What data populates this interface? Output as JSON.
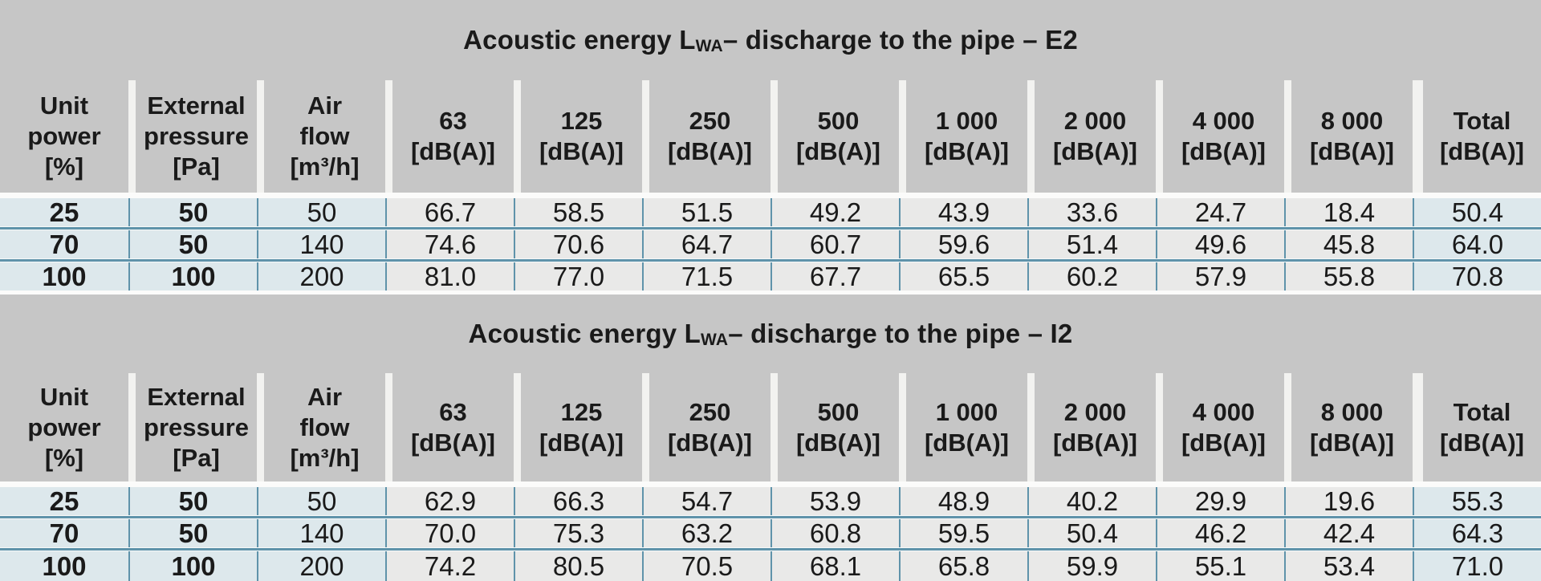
{
  "colors": {
    "band_gray": "#c6c6c6",
    "slit_white": "#f2f2f0",
    "row_blue_bg": "#dde8ec",
    "row_gray_bg": "#e9e9e8",
    "grid_line_blue": "#5f93aa",
    "text": "#1a1a1a"
  },
  "tables": [
    {
      "title": {
        "main": "Acoustic energy L",
        "sub": "WA",
        "rest": " – discharge to the pipe – E2"
      },
      "headers": [
        [
          "Unit",
          "power",
          "[%]"
        ],
        [
          "External",
          "pressure",
          "[Pa]"
        ],
        [
          "Air",
          "flow",
          "[m³/h]"
        ],
        [
          "63",
          "[dB(A)]"
        ],
        [
          "125",
          "[dB(A)]"
        ],
        [
          "250",
          "[dB(A)]"
        ],
        [
          "500",
          "[dB(A)]"
        ],
        [
          "1 000",
          "[dB(A)]"
        ],
        [
          "2 000",
          "[dB(A)]"
        ],
        [
          "4 000",
          "[dB(A)]"
        ],
        [
          "8 000",
          "[dB(A)]"
        ],
        [
          "Total",
          "[dB(A)]"
        ]
      ],
      "rows": [
        [
          "25",
          "50",
          "50",
          "66.7",
          "58.5",
          "51.5",
          "49.2",
          "43.9",
          "33.6",
          "24.7",
          "18.4",
          "50.4"
        ],
        [
          "70",
          "50",
          "140",
          "74.6",
          "70.6",
          "64.7",
          "60.7",
          "59.6",
          "51.4",
          "49.6",
          "45.8",
          "64.0"
        ],
        [
          "100",
          "100",
          "200",
          "81.0",
          "77.0",
          "71.5",
          "67.7",
          "65.5",
          "60.2",
          "57.9",
          "55.8",
          "70.8"
        ]
      ]
    },
    {
      "title": {
        "main": "Acoustic energy L",
        "sub": "WA",
        "rest": " – discharge to the pipe – I2"
      },
      "headers": [
        [
          "Unit",
          "power",
          "[%]"
        ],
        [
          "External",
          "pressure",
          "[Pa]"
        ],
        [
          "Air",
          "flow",
          "[m³/h]"
        ],
        [
          "63",
          "[dB(A)]"
        ],
        [
          "125",
          "[dB(A)]"
        ],
        [
          "250",
          "[dB(A)]"
        ],
        [
          "500",
          "[dB(A)]"
        ],
        [
          "1 000",
          "[dB(A)]"
        ],
        [
          "2 000",
          "[dB(A)]"
        ],
        [
          "4 000",
          "[dB(A)]"
        ],
        [
          "8 000",
          "[dB(A)]"
        ],
        [
          "Total",
          "[dB(A)]"
        ]
      ],
      "rows": [
        [
          "25",
          "50",
          "50",
          "62.9",
          "66.3",
          "54.7",
          "53.9",
          "48.9",
          "40.2",
          "29.9",
          "19.6",
          "55.3"
        ],
        [
          "70",
          "50",
          "140",
          "70.0",
          "75.3",
          "63.2",
          "60.8",
          "59.5",
          "50.4",
          "46.2",
          "42.4",
          "64.3"
        ],
        [
          "100",
          "100",
          "200",
          "74.2",
          "80.5",
          "70.5",
          "68.1",
          "65.8",
          "59.9",
          "55.1",
          "53.4",
          "71.0"
        ]
      ]
    }
  ]
}
